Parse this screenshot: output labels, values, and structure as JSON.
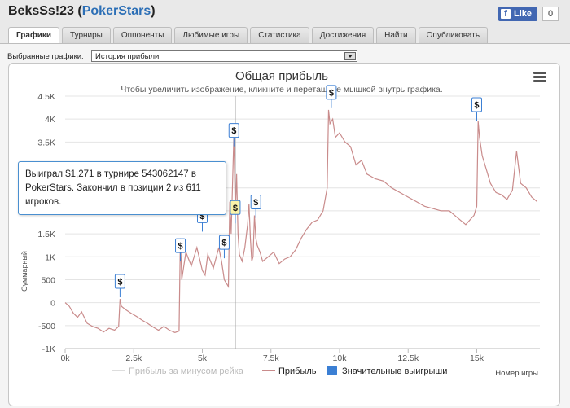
{
  "window": {
    "title_user": "BeksSs!23",
    "title_site": "PokerStars",
    "fb_like": "Like",
    "fb_count": "0"
  },
  "tabs": [
    {
      "label": "Графики",
      "active": true
    },
    {
      "label": "Турниры"
    },
    {
      "label": "Оппоненты"
    },
    {
      "label": "Любимые игры"
    },
    {
      "label": "Статистика"
    },
    {
      "label": "Достижения"
    },
    {
      "label": "Найти"
    },
    {
      "label": "Опубликовать"
    }
  ],
  "selector": {
    "label": "Выбранные графики:",
    "value": "История прибыли"
  },
  "tooltip": {
    "text": "Выиграл $1,271 в турнире 543062147 в PokerStars. Закончил в позиции 2 из 611 игроков."
  },
  "chart_data": {
    "type": "line",
    "title": "Общая прибыль",
    "subtitle": "Чтобы увеличить изображение, кликните и перетащите мышкой внутрь графика.",
    "xlabel": "Номер игры",
    "ylabel": "Суммарный",
    "xlim": [
      0,
      17300
    ],
    "ylim": [
      -1000,
      4500
    ],
    "x_ticks": [
      0,
      2500,
      5000,
      7500,
      10000,
      12500,
      15000
    ],
    "x_tick_labels": [
      "0k",
      "2.5k",
      "5k",
      "7.5k",
      "10k",
      "12.5k",
      "15k"
    ],
    "y_ticks": [
      -1000,
      -500,
      0,
      500,
      1000,
      1500,
      2000,
      2500,
      3000,
      3500,
      4000,
      4500
    ],
    "y_tick_labels": [
      "-1K",
      "-500",
      "0",
      "500",
      "1K",
      "1.5K",
      "2K",
      "2.5K",
      "3K",
      "3.5K",
      "4K",
      "4.5K"
    ],
    "grid": true,
    "legend": [
      "Прибыль за минусом рейка",
      "Прибыль",
      "Значительные выигрыши"
    ],
    "legend_position": "bottom",
    "colors": {
      "profit": "#c98b8b",
      "rake_line": "#dddddd",
      "big_wins": "#3b7fd4",
      "crosshair": "#999999"
    },
    "crosshair_x": 6200,
    "series": [
      {
        "name": "Прибыль",
        "x": [
          0,
          150,
          300,
          450,
          600,
          800,
          1000,
          1200,
          1400,
          1600,
          1800,
          1950,
          2000,
          2050,
          2200,
          2400,
          2600,
          2800,
          3000,
          3200,
          3400,
          3600,
          3800,
          4000,
          4150,
          4200,
          4250,
          4400,
          4500,
          4600,
          4800,
          5000,
          5100,
          5200,
          5400,
          5600,
          5700,
          5800,
          5950,
          6000,
          6050,
          6150,
          6200,
          6250,
          6300,
          6350,
          6450,
          6550,
          6650,
          6700,
          6750,
          6800,
          6850,
          6900,
          6950,
          7000,
          7100,
          7200,
          7400,
          7600,
          7800,
          8000,
          8200,
          8400,
          8600,
          8800,
          9000,
          9200,
          9400,
          9550,
          9600,
          9650,
          9750,
          9850,
          10000,
          10200,
          10400,
          10600,
          10800,
          11000,
          11300,
          11600,
          11900,
          12200,
          12500,
          12800,
          13100,
          13400,
          13700,
          14000,
          14300,
          14600,
          14900,
          15000,
          15050,
          15100,
          15200,
          15300,
          15500,
          15700,
          15900,
          16100,
          16300,
          16450,
          16600,
          16800,
          17000,
          17200
        ],
        "values": [
          0,
          -80,
          -230,
          -320,
          -200,
          -450,
          -520,
          -560,
          -640,
          -560,
          -600,
          -520,
          80,
          -80,
          -150,
          -230,
          -300,
          -380,
          -450,
          -530,
          -600,
          -520,
          -600,
          -650,
          -620,
          1400,
          500,
          1100,
          950,
          800,
          1200,
          700,
          600,
          1050,
          750,
          1200,
          900,
          500,
          350,
          2200,
          1500,
          3700,
          1900,
          2800,
          1500,
          1050,
          900,
          1200,
          1700,
          2150,
          1400,
          900,
          1000,
          1900,
          1400,
          1250,
          1100,
          900,
          1000,
          1100,
          850,
          950,
          1000,
          1150,
          1400,
          1600,
          1750,
          1800,
          2000,
          2500,
          4200,
          3900,
          4000,
          3600,
          3700,
          3500,
          3400,
          3000,
          3100,
          2800,
          2700,
          2650,
          2500,
          2400,
          2300,
          2200,
          2100,
          2050,
          2000,
          2000,
          1850,
          1700,
          1900,
          2100,
          3950,
          3600,
          3200,
          3000,
          2600,
          2400,
          2350,
          2250,
          2450,
          3300,
          2600,
          2500,
          2300,
          2200
        ]
      }
    ],
    "big_wins": [
      {
        "x": 2000,
        "y": 330
      },
      {
        "x": 4200,
        "y": 1110
      },
      {
        "x": 5000,
        "y": 1760
      },
      {
        "x": 5800,
        "y": 1180
      },
      {
        "x": 6150,
        "y": 3620
      },
      {
        "x": 6200,
        "y": 1940,
        "highlighted": true
      },
      {
        "x": 6950,
        "y": 2060
      },
      {
        "x": 9700,
        "y": 4450
      },
      {
        "x": 15000,
        "y": 4180
      }
    ],
    "big_win_label": "$"
  }
}
